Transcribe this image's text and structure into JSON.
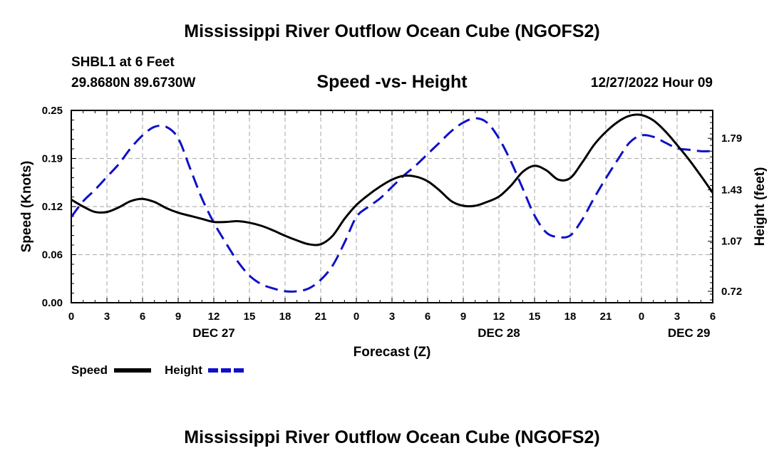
{
  "page": {
    "title": "Mississippi River Outflow Ocean Cube (NGOFS2)",
    "footer_title": "Mississippi River Outflow Ocean Cube (NGOFS2)",
    "station": "SHBL1 at 6 Feet",
    "coords": "29.8680N  89.6730W",
    "timestamp": "12/27/2022 Hour 09"
  },
  "chart_data": {
    "type": "line",
    "title": "Speed -vs- Height",
    "xlabel": "Forecast (Z)",
    "ylabel_left": "Speed (Knots)",
    "ylabel_right": "Height (feet)",
    "x_unit": "hours since 2022-12-26 00Z",
    "xlim": [
      0,
      54
    ],
    "ylim_left": [
      0.0,
      0.25
    ],
    "ylim_right": [
      0.64,
      1.985
    ],
    "x_ticks": [
      0,
      3,
      6,
      9,
      12,
      15,
      18,
      21,
      24,
      27,
      30,
      33,
      36,
      39,
      42,
      45,
      48,
      51,
      54
    ],
    "x_tick_labels": [
      "0",
      "3",
      "6",
      "9",
      "12",
      "15",
      "18",
      "21",
      "0",
      "3",
      "6",
      "9",
      "12",
      "15",
      "18",
      "21",
      "0",
      "3",
      "6"
    ],
    "date_labels": [
      {
        "x": 12,
        "label": "DEC 27"
      },
      {
        "x": 36,
        "label": "DEC 28"
      },
      {
        "x": 52,
        "label": "DEC 29"
      }
    ],
    "y_left_ticks": [
      0.0,
      0.0625,
      0.125,
      0.1875,
      0.25
    ],
    "y_left_tick_labels": [
      "0.00",
      "0.06",
      "0.12",
      "0.19",
      "0.25"
    ],
    "y_right_ticks": [
      0.72,
      1.07,
      1.43,
      1.79
    ],
    "y_right_tick_labels": [
      "0.72",
      "1.07",
      "1.43",
      "1.79"
    ],
    "grid": true,
    "legend_position": "bottom-left",
    "series": [
      {
        "name": "Speed",
        "axis": "left",
        "color": "#000000",
        "dash": "solid",
        "x": [
          0,
          1,
          2,
          3,
          4,
          5,
          6,
          7,
          8,
          9,
          10,
          11,
          12,
          13,
          14,
          15,
          16,
          17,
          18,
          19,
          20,
          21,
          22,
          23,
          24,
          25,
          26,
          27,
          28,
          29,
          30,
          31,
          32,
          33,
          34,
          35,
          36,
          37,
          38,
          39,
          40,
          41,
          42,
          43,
          44,
          45,
          46,
          47,
          48,
          49,
          50,
          51,
          52,
          53,
          54
        ],
        "values": [
          0.134,
          0.125,
          0.118,
          0.118,
          0.124,
          0.132,
          0.135,
          0.131,
          0.123,
          0.117,
          0.113,
          0.109,
          0.105,
          0.105,
          0.106,
          0.104,
          0.1,
          0.094,
          0.087,
          0.081,
          0.076,
          0.076,
          0.087,
          0.109,
          0.127,
          0.14,
          0.151,
          0.16,
          0.165,
          0.164,
          0.158,
          0.146,
          0.132,
          0.126,
          0.126,
          0.131,
          0.138,
          0.152,
          0.17,
          0.178,
          0.172,
          0.16,
          0.162,
          0.182,
          0.205,
          0.222,
          0.235,
          0.243,
          0.244,
          0.237,
          0.223,
          0.205,
          0.186,
          0.165,
          0.143
        ]
      },
      {
        "name": "Height",
        "axis": "right",
        "color": "#1010c8",
        "dash": "dashed",
        "x": [
          0,
          1,
          2,
          3,
          4,
          5,
          6,
          7,
          8,
          9,
          10,
          11,
          12,
          13,
          14,
          15,
          16,
          17,
          18,
          19,
          20,
          21,
          22,
          23,
          24,
          25,
          26,
          27,
          28,
          29,
          30,
          31,
          32,
          33,
          34,
          35,
          36,
          37,
          38,
          39,
          40,
          41,
          42,
          43,
          44,
          45,
          46,
          47,
          48,
          49,
          50,
          51,
          52,
          53,
          54
        ],
        "values": [
          1.24,
          1.35,
          1.43,
          1.52,
          1.61,
          1.72,
          1.81,
          1.87,
          1.87,
          1.79,
          1.58,
          1.37,
          1.2,
          1.06,
          0.93,
          0.83,
          0.77,
          0.74,
          0.72,
          0.72,
          0.74,
          0.8,
          0.9,
          1.06,
          1.24,
          1.31,
          1.37,
          1.45,
          1.53,
          1.6,
          1.68,
          1.76,
          1.84,
          1.9,
          1.93,
          1.9,
          1.79,
          1.63,
          1.44,
          1.25,
          1.13,
          1.1,
          1.11,
          1.22,
          1.37,
          1.51,
          1.64,
          1.76,
          1.81,
          1.8,
          1.76,
          1.72,
          1.71,
          1.7,
          1.7
        ]
      }
    ]
  }
}
